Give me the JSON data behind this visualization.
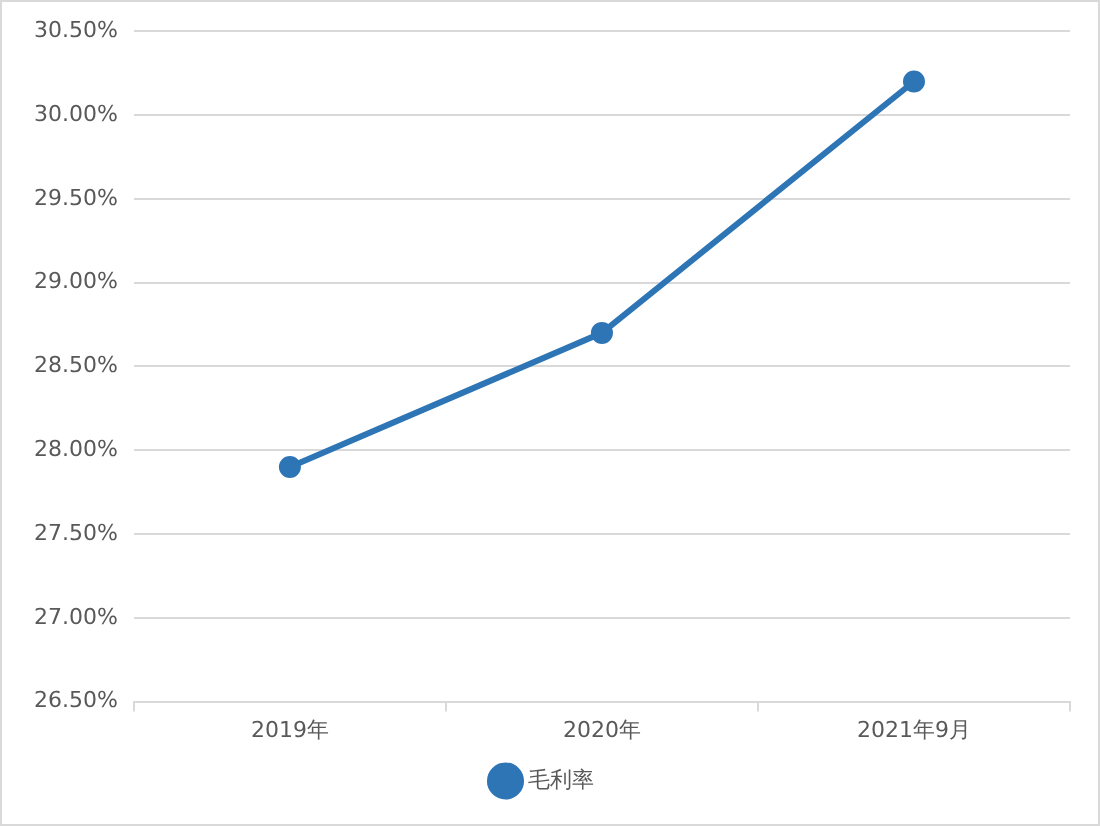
{
  "chart_data": {
    "type": "line",
    "categories": [
      "2019年",
      "2020年",
      "2021年9月"
    ],
    "series": [
      {
        "name": "毛利率",
        "color": "#2e75b6",
        "values": [
          27.9,
          28.7,
          30.2
        ]
      }
    ],
    "ylim": [
      26.5,
      30.5
    ],
    "yticks": [
      {
        "value": 26.5,
        "label": "26.50%"
      },
      {
        "value": 27,
        "label": "27.00%"
      },
      {
        "value": 27.5,
        "label": "27.50%"
      },
      {
        "value": 28,
        "label": "28.00%"
      },
      {
        "value": 28.5,
        "label": "28.50%"
      },
      {
        "value": 29,
        "label": "29.00%"
      },
      {
        "value": 29.5,
        "label": "29.50%"
      },
      {
        "value": 30,
        "label": "30.00%"
      },
      {
        "value": 30.5,
        "label": "30.50%"
      }
    ],
    "grid": "y",
    "legend": "bottom",
    "marker": "circle",
    "line_style": "solid"
  }
}
